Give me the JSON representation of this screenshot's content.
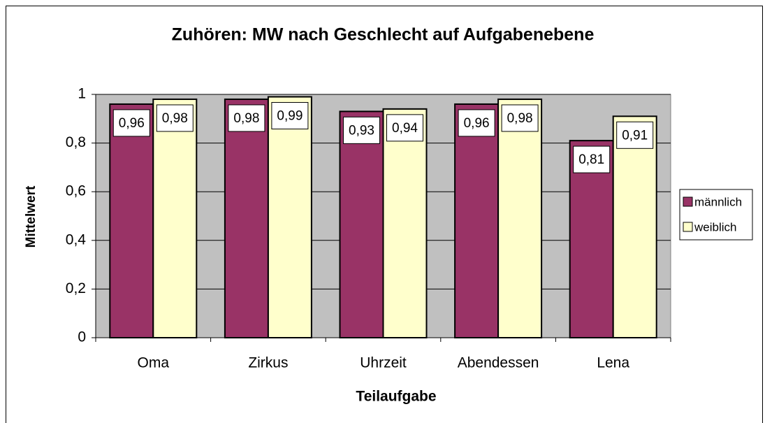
{
  "chart_data": {
    "type": "bar",
    "title": "Zuhören: MW nach Geschlecht auf Aufgabenebene",
    "x_label": "Teilaufgabe",
    "y_label": "Mittelwert",
    "categories": [
      "Oma",
      "Zirkus",
      "Uhrzeit",
      "Abendessen",
      "Lena"
    ],
    "series": [
      {
        "name": "männlich",
        "color": "#993366",
        "values": [
          0.96,
          0.98,
          0.93,
          0.96,
          0.81
        ],
        "value_labels": [
          "0,96",
          "0,98",
          "0,93",
          "0,96",
          "0,81"
        ]
      },
      {
        "name": "weiblich",
        "color": "#ffffcc",
        "values": [
          0.98,
          0.99,
          0.94,
          0.98,
          0.91
        ],
        "value_labels": [
          "0,98",
          "0,99",
          "0,94",
          "0,98",
          "0,91"
        ]
      }
    ],
    "ylim": [
      0,
      1
    ],
    "yticks": [
      0,
      {
        "value": 0.2,
        "label": "0,2"
      },
      {
        "value": 0.4,
        "label": "0,4"
      },
      {
        "value": 0.6,
        "label": "0,6"
      },
      {
        "value": 0.8,
        "label": "0,8"
      },
      1
    ],
    "grid": true,
    "legend": "right",
    "plot_background": "#c0c0c0"
  }
}
